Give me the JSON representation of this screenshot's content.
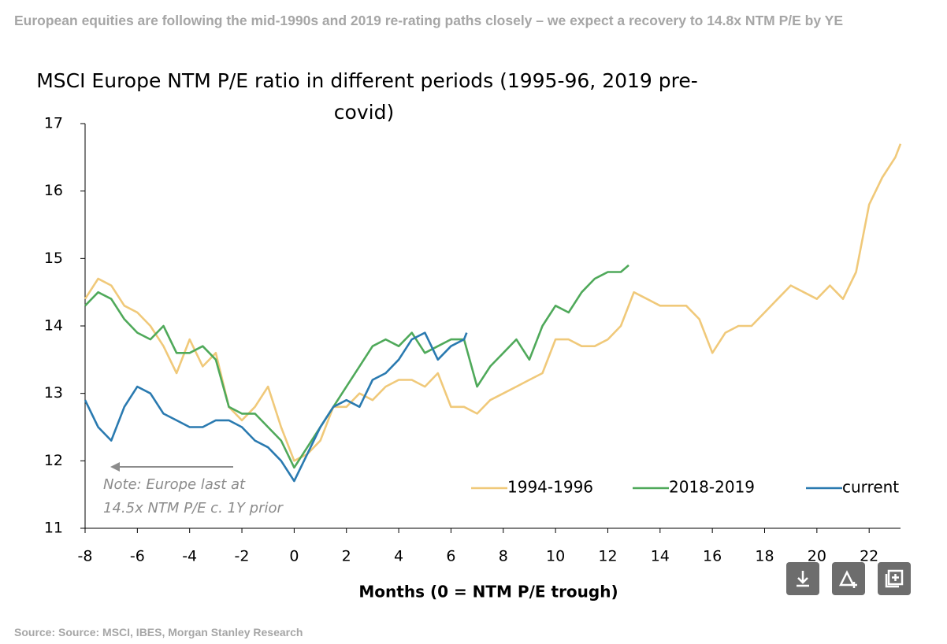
{
  "header": {
    "title": "European equities are following the mid-1990s and 2019 re-rating paths closely – we expect a recovery to 14.8x NTM P/E by YE"
  },
  "footer": {
    "source": "Source: Source: MSCI, IBES, Morgan Stanley Research"
  },
  "chart_data": {
    "type": "line",
    "title": [
      "MSCI Europe NTM P/E ratio in different periods (1995-96, 2019 pre-",
      "covid)"
    ],
    "x_label": "Months (0 = NTM P/E trough)",
    "annotation": [
      "Note: Europe last at",
      "14.5x NTM P/E c. 1Y prior"
    ],
    "xlim": [
      -8,
      23.2
    ],
    "ylim": [
      11,
      17
    ],
    "xticks": [
      -8,
      -6,
      -4,
      -2,
      0,
      2,
      4,
      6,
      8,
      10,
      12,
      14,
      16,
      18,
      20,
      22
    ],
    "yticks": [
      11,
      12,
      13,
      14,
      15,
      16,
      17
    ],
    "grid": false,
    "legend": "lower right",
    "series": [
      {
        "name": "1994-1996",
        "color": "#f0c97a",
        "x": [
          -8,
          -7.5,
          -7,
          -6.5,
          -6,
          -5.5,
          -5,
          -4.5,
          -4,
          -3.5,
          -3,
          -2.5,
          -2,
          -1.5,
          -1,
          -0.5,
          0,
          0.5,
          1,
          1.5,
          2,
          2.5,
          3,
          3.5,
          4,
          4.5,
          5,
          5.5,
          6,
          6.5,
          7,
          7.5,
          8,
          8.5,
          9,
          9.5,
          10,
          10.5,
          11,
          11.5,
          12,
          12.5,
          13,
          13.5,
          14,
          14.5,
          15,
          15.5,
          16,
          16.5,
          17,
          17.5,
          18,
          18.5,
          19,
          19.5,
          20,
          20.5,
          21,
          21.5,
          22,
          22.5,
          23,
          23.2
        ],
        "values": [
          14.4,
          14.7,
          14.6,
          14.3,
          14.2,
          14.0,
          13.7,
          13.3,
          13.8,
          13.4,
          13.6,
          12.8,
          12.6,
          12.8,
          13.1,
          12.5,
          12.0,
          12.1,
          12.3,
          12.8,
          12.8,
          13.0,
          12.9,
          13.1,
          13.2,
          13.2,
          13.1,
          13.3,
          12.8,
          12.8,
          12.7,
          12.9,
          13.0,
          13.1,
          13.2,
          13.3,
          13.8,
          13.8,
          13.7,
          13.7,
          13.8,
          14.0,
          14.5,
          14.4,
          14.3,
          14.3,
          14.3,
          14.1,
          13.6,
          13.9,
          14.0,
          14.0,
          14.2,
          14.4,
          14.6,
          14.5,
          14.4,
          14.6,
          14.4,
          14.8,
          15.8,
          16.2,
          16.5,
          16.7
        ]
      },
      {
        "name": "2018-2019",
        "color": "#4fa95a",
        "x": [
          -8,
          -7.5,
          -7,
          -6.5,
          -6,
          -5.5,
          -5,
          -4.5,
          -4,
          -3.5,
          -3,
          -2.5,
          -2,
          -1.5,
          -1,
          -0.5,
          0,
          0.5,
          1,
          1.5,
          2,
          2.5,
          3,
          3.5,
          4,
          4.5,
          5,
          5.5,
          6,
          6.5,
          7,
          7.5,
          8,
          8.5,
          9,
          9.5,
          10,
          10.5,
          11,
          11.5,
          12,
          12.5,
          12.8
        ],
        "values": [
          14.3,
          14.5,
          14.4,
          14.1,
          13.9,
          13.8,
          14.0,
          13.6,
          13.6,
          13.7,
          13.5,
          12.8,
          12.7,
          12.7,
          12.5,
          12.3,
          11.9,
          12.2,
          12.5,
          12.8,
          13.1,
          13.4,
          13.7,
          13.8,
          13.7,
          13.9,
          13.6,
          13.7,
          13.8,
          13.8,
          13.1,
          13.4,
          13.6,
          13.8,
          13.5,
          14.0,
          14.3,
          14.2,
          14.5,
          14.7,
          14.8,
          14.8,
          14.9
        ]
      },
      {
        "name": "current",
        "color": "#2a7ab0",
        "x": [
          -8,
          -7.5,
          -7,
          -6.5,
          -6,
          -5.5,
          -5,
          -4.5,
          -4,
          -3.5,
          -3,
          -2.5,
          -2,
          -1.5,
          -1,
          -0.5,
          0,
          0.5,
          1,
          1.5,
          2,
          2.5,
          3,
          3.5,
          4,
          4.5,
          5,
          5.5,
          6,
          6.5,
          6.6
        ],
        "values": [
          12.9,
          12.5,
          12.3,
          12.8,
          13.1,
          13.0,
          12.7,
          12.6,
          12.5,
          12.5,
          12.6,
          12.6,
          12.5,
          12.3,
          12.2,
          12.0,
          11.7,
          12.1,
          12.5,
          12.8,
          12.9,
          12.8,
          13.2,
          13.3,
          13.5,
          13.8,
          13.9,
          13.5,
          13.7,
          13.8,
          13.9
        ]
      }
    ]
  }
}
